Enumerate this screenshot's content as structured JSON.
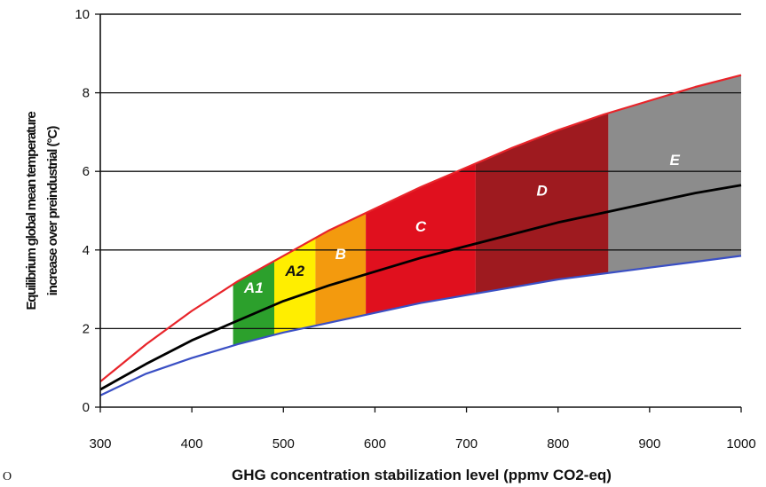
{
  "chart_data": {
    "type": "area",
    "xlabel": "GHG concentration stabilization level (ppmv CO2-eq)",
    "ylabel_line1": "Equilibrium global mean temperature",
    "ylabel_line2": "increase over preindustrial (°C)",
    "xlim": [
      300,
      1000
    ],
    "ylim": [
      0,
      10
    ],
    "x_ticks": [
      300,
      400,
      500,
      600,
      700,
      800,
      900,
      1000
    ],
    "y_ticks": [
      0,
      2,
      4,
      6,
      8,
      10
    ],
    "grid": "horizontal",
    "stray_text": "O",
    "series": [
      {
        "key": "upper",
        "color": "#e8242a",
        "x": [
          300,
          350,
          400,
          450,
          500,
          550,
          600,
          650,
          700,
          750,
          800,
          850,
          900,
          950,
          1000
        ],
        "values": [
          0.65,
          1.6,
          2.45,
          3.2,
          3.85,
          4.5,
          5.05,
          5.6,
          6.1,
          6.6,
          7.05,
          7.45,
          7.8,
          8.15,
          8.45
        ]
      },
      {
        "key": "central",
        "color": "#000000",
        "x": [
          300,
          350,
          400,
          450,
          500,
          550,
          600,
          650,
          700,
          750,
          800,
          850,
          900,
          950,
          1000
        ],
        "values": [
          0.45,
          1.1,
          1.7,
          2.2,
          2.7,
          3.1,
          3.45,
          3.8,
          4.1,
          4.4,
          4.7,
          4.95,
          5.2,
          5.45,
          5.65
        ]
      },
      {
        "key": "lower",
        "color": "#3a4fc4",
        "x": [
          300,
          350,
          400,
          450,
          500,
          550,
          600,
          650,
          700,
          750,
          800,
          850,
          900,
          950,
          1000
        ],
        "values": [
          0.3,
          0.85,
          1.25,
          1.6,
          1.9,
          2.15,
          2.4,
          2.65,
          2.85,
          3.05,
          3.25,
          3.4,
          3.55,
          3.7,
          3.85
        ]
      }
    ],
    "regions": [
      {
        "label": "A1",
        "x_start": 445,
        "x_end": 490,
        "color": "#2ca02c"
      },
      {
        "label": "A2",
        "x_start": 490,
        "x_end": 535,
        "color": "#ffee00"
      },
      {
        "label": "B",
        "x_start": 535,
        "x_end": 590,
        "color": "#f39a0e"
      },
      {
        "label": "C",
        "x_start": 590,
        "x_end": 710,
        "color": "#e0101e"
      },
      {
        "label": "D",
        "x_start": 710,
        "x_end": 855,
        "color": "#9e1a1f"
      },
      {
        "label": "E",
        "x_start": 855,
        "x_end": 1000,
        "color": "#8c8c8c"
      }
    ]
  }
}
